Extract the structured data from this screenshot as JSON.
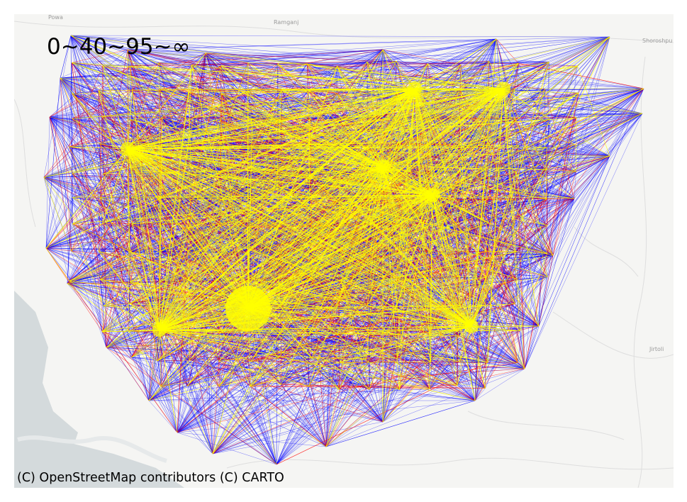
{
  "legend": {
    "text": "0~40~95~∞"
  },
  "attribution": "(C) OpenStreetMap contributors (C) CARTO",
  "places": {
    "powa": "Powa",
    "ramganj": "Ramganj",
    "shoroshpur": "Shoroshpu",
    "jirtoli": "Jirtoli"
  },
  "colors": {
    "band_low": "#ffff00",
    "band_mid": "#ff0000",
    "band_high": "#0000ff",
    "water": "#d4dadc",
    "land": "#f5f5f3"
  },
  "icons": [
    "flow-lines",
    "water-body",
    "road-network"
  ]
}
